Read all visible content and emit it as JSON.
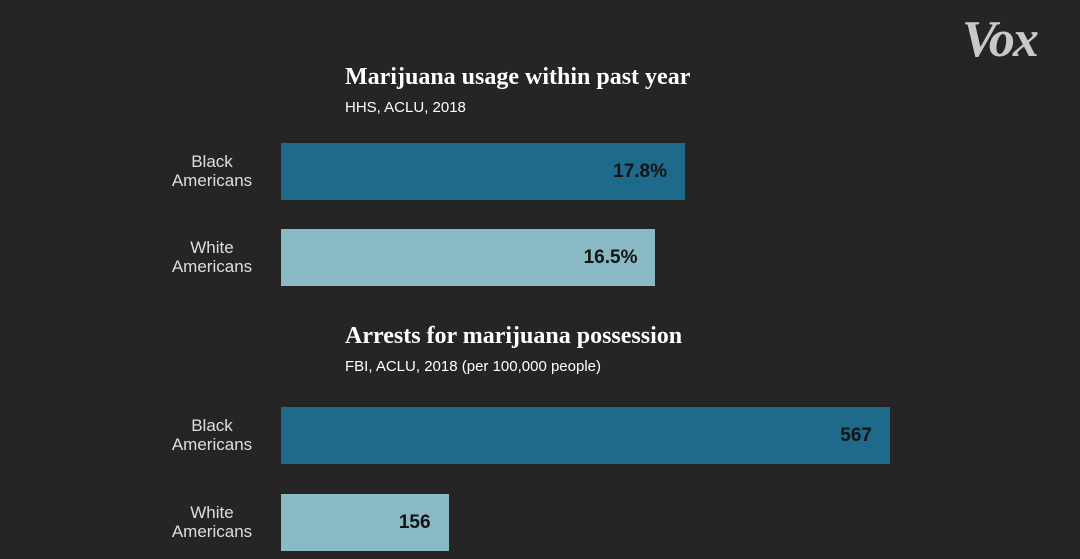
{
  "brand": {
    "logo_text": "Vox"
  },
  "colors": {
    "background": "#252525",
    "black_americans": "#1d6a8a",
    "white_americans": "#88b9c5"
  },
  "chart_data": [
    {
      "type": "bar",
      "orientation": "horizontal",
      "title": "Marijuana usage within past year",
      "subtitle": "HHS, ACLU, 2018",
      "categories": [
        "Black\nAmericans",
        "White\nAmericans"
      ],
      "values": [
        17.8,
        16.5
      ],
      "value_labels": [
        "17.8%",
        "16.5%"
      ],
      "unit": "%"
    },
    {
      "type": "bar",
      "orientation": "horizontal",
      "title": "Arrests for marijuana possession",
      "subtitle": "FBI, ACLU, 2018 (per 100,000 people)",
      "categories": [
        "Black\nAmericans",
        "White\nAmericans"
      ],
      "values": [
        567,
        156
      ],
      "value_labels": [
        "567",
        "156"
      ]
    }
  ]
}
